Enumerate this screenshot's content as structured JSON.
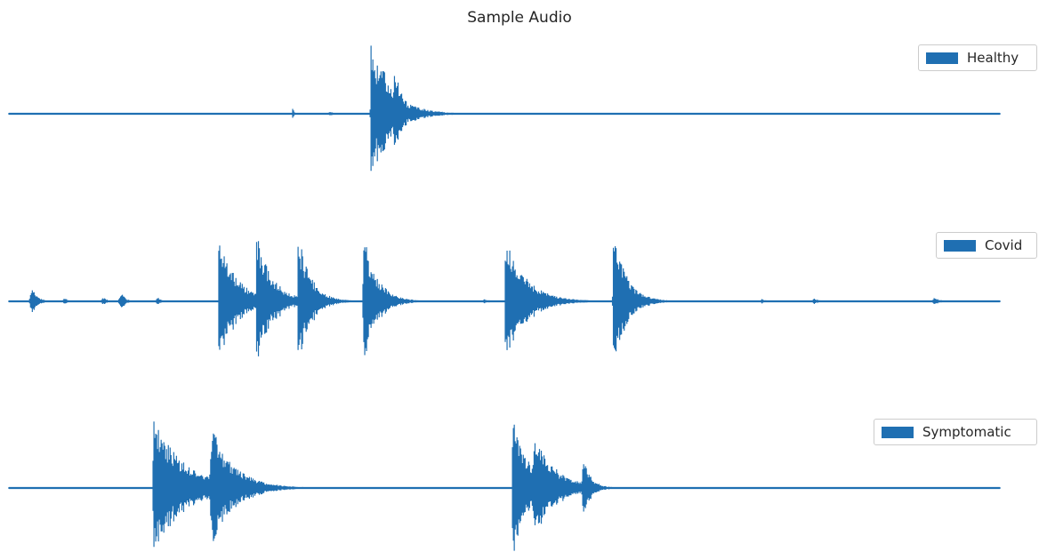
{
  "chart_data": {
    "type": "line",
    "title": "Sample Audio",
    "color": "#1f6fb2",
    "axes_visible": false,
    "grid": false,
    "legend_placement": "right",
    "x_range": [
      0,
      1
    ],
    "y_range": [
      -1,
      1
    ],
    "series": [
      {
        "name": "Healthy",
        "envelopes": [
          {
            "t": 0.2865,
            "amp": 0.13,
            "len": 0.0025,
            "rise": 0.0005
          },
          {
            "t": 0.324,
            "amp": 0.03,
            "len": 0.012,
            "rise": 0.003
          },
          {
            "t": 0.365,
            "amp": 1.0,
            "len": 0.045,
            "rise": 0.0005
          },
          {
            "t": 0.376,
            "amp": 0.78,
            "len": 0.025,
            "rise": 0.002
          },
          {
            "t": 0.389,
            "amp": 0.78,
            "len": 0.018,
            "rise": 0.002
          }
        ]
      },
      {
        "name": "Covid",
        "envelopes": [
          {
            "t": 0.024,
            "amp": 0.2,
            "len": 0.012,
            "rise": 0.004
          },
          {
            "t": 0.056,
            "amp": 0.05,
            "len": 0.01,
            "rise": 0.003
          },
          {
            "t": 0.095,
            "amp": 0.06,
            "len": 0.01,
            "rise": 0.003
          },
          {
            "t": 0.113,
            "amp": 0.14,
            "len": 0.01,
            "rise": 0.003
          },
          {
            "t": 0.15,
            "amp": 0.06,
            "len": 0.01,
            "rise": 0.003
          },
          {
            "t": 0.212,
            "amp": 0.95,
            "len": 0.04,
            "rise": 0.001
          },
          {
            "t": 0.25,
            "amp": 0.98,
            "len": 0.035,
            "rise": 0.001
          },
          {
            "t": 0.292,
            "amp": 1.0,
            "len": 0.028,
            "rise": 0.001
          },
          {
            "t": 0.358,
            "amp": 0.97,
            "len": 0.03,
            "rise": 0.001
          },
          {
            "t": 0.48,
            "amp": 0.04,
            "len": 0.01,
            "rise": 0.003
          },
          {
            "t": 0.501,
            "amp": 0.95,
            "len": 0.045,
            "rise": 0.001
          },
          {
            "t": 0.61,
            "amp": 1.0,
            "len": 0.03,
            "rise": 0.001
          },
          {
            "t": 0.76,
            "amp": 0.04,
            "len": 0.01,
            "rise": 0.003
          },
          {
            "t": 0.813,
            "amp": 0.05,
            "len": 0.01,
            "rise": 0.003
          },
          {
            "t": 0.934,
            "amp": 0.06,
            "len": 0.012,
            "rise": 0.003
          }
        ]
      },
      {
        "name": "Symptomatic",
        "envelopes": [
          {
            "t": 0.146,
            "amp": 0.98,
            "len": 0.07,
            "rise": 0.001
          },
          {
            "t": 0.204,
            "amp": 0.9,
            "len": 0.05,
            "rise": 0.002
          },
          {
            "t": 0.508,
            "amp": 1.0,
            "len": 0.04,
            "rise": 0.0005
          },
          {
            "t": 0.53,
            "amp": 0.82,
            "len": 0.045,
            "rise": 0.003
          },
          {
            "t": 0.58,
            "amp": 0.4,
            "len": 0.018,
            "rise": 0.003
          }
        ]
      }
    ]
  }
}
